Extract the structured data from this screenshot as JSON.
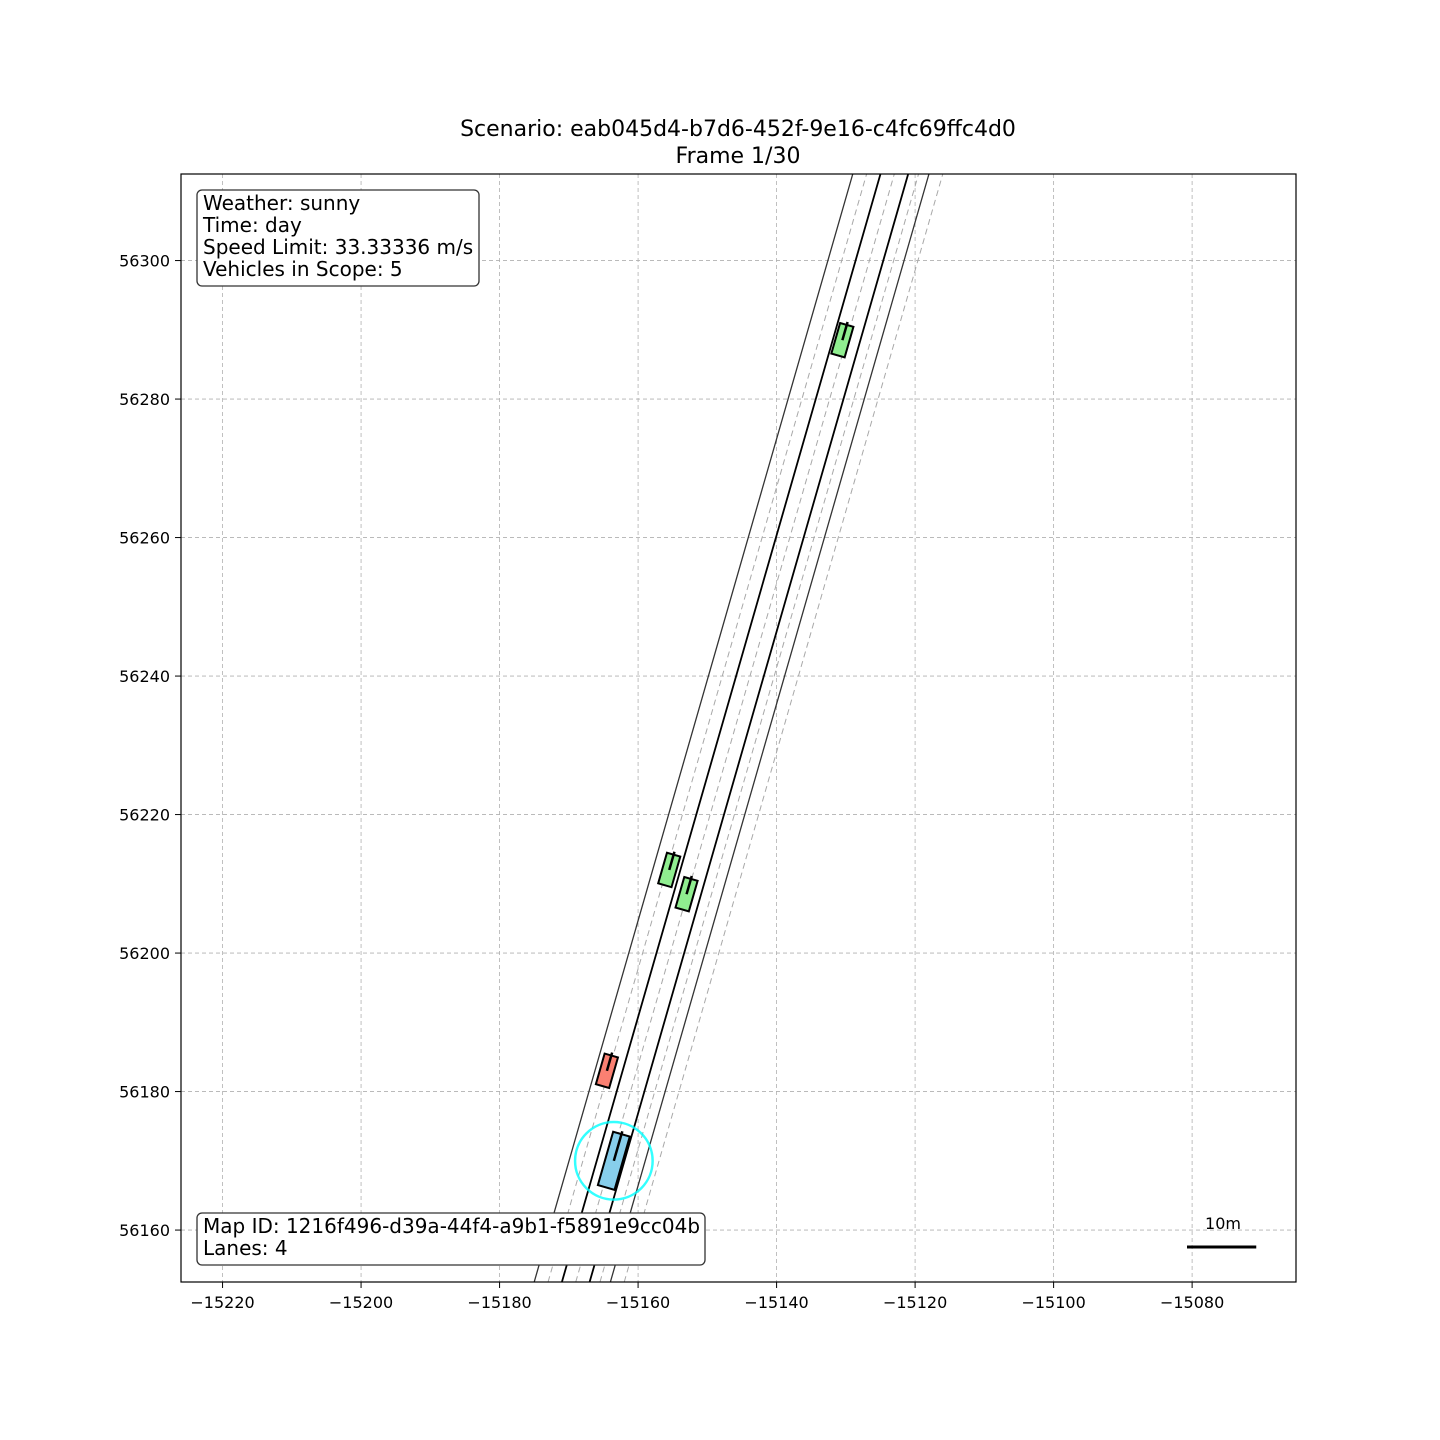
{
  "chart_data": {
    "type": "scatter",
    "title": "Scenario: eab045d4-b7d6-452f-9e16-c4fc69ffc4d0",
    "subtitle": "Frame 1/30",
    "xlabel": "",
    "ylabel": "",
    "xlim": [
      -15226,
      -15065
    ],
    "ylim": [
      56152.5,
      56312.5
    ],
    "x_ticks": [
      -15220,
      -15200,
      -15180,
      -15160,
      -15140,
      -15120,
      -15100,
      -15080
    ],
    "x_tick_labels": [
      "−15220",
      "−15200",
      "−15180",
      "−15160",
      "−15140",
      "−15120",
      "−15100",
      "−15080"
    ],
    "y_ticks": [
      56160,
      56180,
      56200,
      56220,
      56240,
      56260,
      56280,
      56300
    ],
    "y_tick_labels": [
      "56160",
      "56180",
      "56200",
      "56220",
      "56240",
      "56260",
      "56280",
      "56300"
    ],
    "grid": true,
    "info_box": {
      "lines": [
        "Weather: sunny",
        "Time: day",
        "Speed Limit: 33.33336 m/s",
        "Vehicles in Scope: 5"
      ]
    },
    "map_box": {
      "lines": [
        "Map ID: 1216f496-d39a-44f4-a9b1-f5891e9cc04b",
        "Lanes: 4"
      ]
    },
    "scale_bar": {
      "label": "10m",
      "length_m": 10
    },
    "road_lines": [
      {
        "kind": "edge",
        "from": [
          -15175.0,
          56152.5
        ],
        "to": [
          -15129.0,
          56312.5
        ]
      },
      {
        "kind": "boundary",
        "from": [
          -15171.0,
          56152.5
        ],
        "to": [
          -15125.0,
          56312.5
        ]
      },
      {
        "kind": "boundary",
        "from": [
          -15167.0,
          56152.5
        ],
        "to": [
          -15121.0,
          56312.5
        ]
      },
      {
        "kind": "edge",
        "from": [
          -15164.0,
          56152.5
        ],
        "to": [
          -15118.0,
          56312.5
        ]
      }
    ],
    "lane_centerlines": [
      {
        "from": [
          -15173.0,
          56152.5
        ],
        "to": [
          -15127.0,
          56312.5
        ]
      },
      {
        "from": [
          -15169.0,
          56152.5
        ],
        "to": [
          -15123.0,
          56312.5
        ]
      },
      {
        "from": [
          -15165.5,
          56152.5
        ],
        "to": [
          -15119.5,
          56312.5
        ]
      },
      {
        "from": [
          -15162.0,
          56152.5
        ],
        "to": [
          -15116.0,
          56312.5
        ]
      }
    ],
    "vehicles": [
      {
        "role": "ego",
        "x": -15163.5,
        "y": 56170.0,
        "length": 8.0,
        "width": 2.5,
        "color": "#87ceeb",
        "heading_deg": 74
      },
      {
        "role": "other",
        "x": -15164.5,
        "y": 56183.0,
        "length": 4.6,
        "width": 2.0,
        "color": "#fa8072",
        "heading_deg": 74
      },
      {
        "role": "other",
        "x": -15155.5,
        "y": 56212.0,
        "length": 4.6,
        "width": 2.0,
        "color": "#90ee90",
        "heading_deg": 74
      },
      {
        "role": "other",
        "x": -15153.0,
        "y": 56208.5,
        "length": 4.6,
        "width": 2.0,
        "color": "#90ee90",
        "heading_deg": 74
      },
      {
        "role": "other",
        "x": -15130.5,
        "y": 56288.5,
        "length": 4.6,
        "width": 2.0,
        "color": "#90ee90",
        "heading_deg": 74
      }
    ],
    "ego_highlight": {
      "x": -15163.5,
      "y": 56170.0,
      "radius_m": 5.6,
      "color": "#00ffff"
    }
  }
}
